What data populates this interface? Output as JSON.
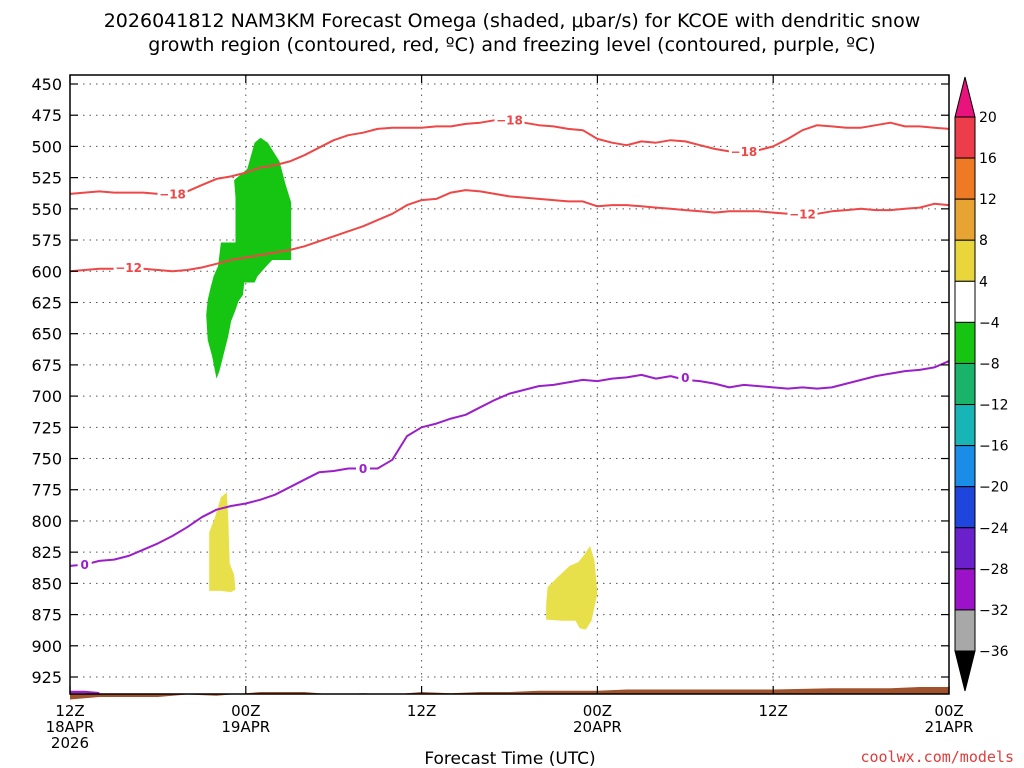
{
  "chart_data": {
    "type": "time-height cross section",
    "title_line1": "2026041812 NAM3KM Forecast Omega (shaded, μbar/s) for KCOE with dendritic snow",
    "title_line2": "growth region (contoured, red, ºC) and freezing level (contoured, purple, ºC)",
    "xlabel": "Forecast Time (UTC)",
    "credit": "coolwx.com/models",
    "x_range_hours": [
      0,
      60
    ],
    "y_range_mb": [
      440,
      945
    ],
    "y_ticks": [
      450,
      475,
      500,
      525,
      550,
      575,
      600,
      625,
      650,
      675,
      700,
      725,
      750,
      775,
      800,
      825,
      850,
      875,
      900,
      925
    ],
    "x_ticks": [
      {
        "hour": 0,
        "label1": "12Z",
        "label2": "18APR",
        "label3": "2026"
      },
      {
        "hour": 12,
        "label1": "00Z",
        "label2": "19APR",
        "label3": ""
      },
      {
        "hour": 24,
        "label1": "12Z",
        "label2": "",
        "label3": ""
      },
      {
        "hour": 36,
        "label1": "00Z",
        "label2": "20APR",
        "label3": ""
      },
      {
        "hour": 48,
        "label1": "12Z",
        "label2": "",
        "label3": ""
      },
      {
        "hour": 60,
        "label1": "00Z",
        "label2": "21APR",
        "label3": ""
      }
    ],
    "colorbar": {
      "labels": [
        "20",
        "16",
        "12",
        "8",
        "4",
        "−4",
        "−8",
        "−12",
        "−16",
        "−20",
        "−24",
        "−28",
        "−32",
        "−36"
      ],
      "colors": [
        "#ed3d4a",
        "#ef7a25",
        "#e7a433",
        "#e9d63a",
        "#ffffff",
        "#16c412",
        "#19b36a",
        "#17b5b5",
        "#1a8ee6",
        "#1f46dc",
        "#6a21cc",
        "#9c12c9",
        "#a8a8a8"
      ],
      "top_arrow_color": "#e8137d",
      "bottom_arrow_color": "#000000"
    },
    "contours": [
      {
        "name": "minus-18-isotherm",
        "color": "#ee4747",
        "points": [
          [
            0,
            538
          ],
          [
            1,
            537
          ],
          [
            2,
            536
          ],
          [
            3,
            537
          ],
          [
            4,
            537
          ],
          [
            5,
            537
          ],
          [
            6,
            538
          ],
          [
            7,
            538
          ],
          [
            8,
            536
          ],
          [
            9,
            531
          ],
          [
            10,
            526
          ],
          [
            11,
            524
          ],
          [
            12,
            521
          ],
          [
            13,
            517
          ],
          [
            14,
            515
          ],
          [
            15,
            512
          ],
          [
            16,
            507
          ],
          [
            17,
            501
          ],
          [
            18,
            495
          ],
          [
            19,
            491
          ],
          [
            20,
            489
          ],
          [
            21,
            486
          ],
          [
            22,
            485
          ],
          [
            23,
            485
          ],
          [
            24,
            485
          ],
          [
            25,
            484
          ],
          [
            26,
            484
          ],
          [
            27,
            482
          ],
          [
            28,
            481
          ],
          [
            29,
            479
          ],
          [
            30,
            480
          ],
          [
            31,
            481
          ],
          [
            32,
            483
          ],
          [
            33,
            484
          ],
          [
            34,
            486
          ],
          [
            35,
            487
          ],
          [
            36,
            494
          ],
          [
            37,
            497
          ],
          [
            38,
            499
          ],
          [
            39,
            496
          ],
          [
            40,
            497
          ],
          [
            41,
            495
          ],
          [
            42,
            496
          ],
          [
            43,
            499
          ],
          [
            44,
            502
          ],
          [
            45,
            504
          ],
          [
            46,
            503
          ],
          [
            47,
            503
          ],
          [
            48,
            500
          ],
          [
            49,
            494
          ],
          [
            50,
            487
          ],
          [
            51,
            483
          ],
          [
            52,
            484
          ],
          [
            53,
            485
          ],
          [
            54,
            485
          ],
          [
            55,
            483
          ],
          [
            56,
            481
          ],
          [
            57,
            484
          ],
          [
            58,
            484
          ],
          [
            59,
            485
          ],
          [
            60,
            486
          ]
        ],
        "labels": [
          {
            "text": "−18",
            "hour": 7,
            "mb": 538
          },
          {
            "text": "−18",
            "hour": 30,
            "mb": 479
          },
          {
            "text": "−18",
            "hour": 46,
            "mb": 504
          }
        ]
      },
      {
        "name": "minus-12-isotherm",
        "color": "#ee4747",
        "points": [
          [
            0,
            600
          ],
          [
            1,
            599
          ],
          [
            2,
            598
          ],
          [
            3,
            598
          ],
          [
            4,
            597
          ],
          [
            5,
            598
          ],
          [
            6,
            599
          ],
          [
            7,
            600
          ],
          [
            8,
            599
          ],
          [
            9,
            597
          ],
          [
            10,
            594
          ],
          [
            11,
            591
          ],
          [
            12,
            589
          ],
          [
            13,
            587
          ],
          [
            14,
            585
          ],
          [
            15,
            583
          ],
          [
            16,
            580
          ],
          [
            17,
            576
          ],
          [
            18,
            572
          ],
          [
            19,
            568
          ],
          [
            20,
            564
          ],
          [
            21,
            559
          ],
          [
            22,
            554
          ],
          [
            23,
            547
          ],
          [
            24,
            543
          ],
          [
            25,
            542
          ],
          [
            26,
            537
          ],
          [
            27,
            535
          ],
          [
            28,
            536
          ],
          [
            29,
            538
          ],
          [
            30,
            540
          ],
          [
            31,
            541
          ],
          [
            32,
            542
          ],
          [
            33,
            543
          ],
          [
            34,
            544
          ],
          [
            35,
            544
          ],
          [
            36,
            548
          ],
          [
            37,
            547
          ],
          [
            38,
            547
          ],
          [
            39,
            548
          ],
          [
            40,
            549
          ],
          [
            41,
            550
          ],
          [
            42,
            551
          ],
          [
            43,
            552
          ],
          [
            44,
            553
          ],
          [
            45,
            552
          ],
          [
            46,
            552
          ],
          [
            47,
            552
          ],
          [
            48,
            553
          ],
          [
            49,
            554
          ],
          [
            50,
            554
          ],
          [
            51,
            554
          ],
          [
            52,
            552
          ],
          [
            53,
            551
          ],
          [
            54,
            550
          ],
          [
            55,
            551
          ],
          [
            56,
            551
          ],
          [
            57,
            550
          ],
          [
            58,
            549
          ],
          [
            59,
            546
          ],
          [
            60,
            547
          ]
        ],
        "labels": [
          {
            "text": "−12",
            "hour": 4,
            "mb": 597
          },
          {
            "text": "−12",
            "hour": 50,
            "mb": 554
          }
        ]
      },
      {
        "name": "freezing-level",
        "color": "#9b1fc8",
        "points": [
          [
            0,
            836
          ],
          [
            1,
            835
          ],
          [
            2,
            832
          ],
          [
            3,
            831
          ],
          [
            4,
            828
          ],
          [
            5,
            823
          ],
          [
            6,
            818
          ],
          [
            7,
            812
          ],
          [
            8,
            805
          ],
          [
            9,
            797
          ],
          [
            10,
            791
          ],
          [
            11,
            788
          ],
          [
            12,
            786
          ],
          [
            13,
            783
          ],
          [
            14,
            779
          ],
          [
            15,
            773
          ],
          [
            16,
            767
          ],
          [
            17,
            761
          ],
          [
            18,
            760
          ],
          [
            19,
            758
          ],
          [
            20,
            758
          ],
          [
            21,
            758
          ],
          [
            22,
            751
          ],
          [
            23,
            732
          ],
          [
            24,
            725
          ],
          [
            25,
            722
          ],
          [
            26,
            718
          ],
          [
            27,
            715
          ],
          [
            28,
            709
          ],
          [
            29,
            703
          ],
          [
            30,
            698
          ],
          [
            31,
            695
          ],
          [
            32,
            692
          ],
          [
            33,
            691
          ],
          [
            34,
            689
          ],
          [
            35,
            687
          ],
          [
            36,
            688
          ],
          [
            37,
            686
          ],
          [
            38,
            685
          ],
          [
            39,
            683
          ],
          [
            40,
            686
          ],
          [
            41,
            684
          ],
          [
            42,
            687
          ],
          [
            43,
            688
          ],
          [
            44,
            690
          ],
          [
            45,
            693
          ],
          [
            46,
            691
          ],
          [
            47,
            692
          ],
          [
            48,
            693
          ],
          [
            49,
            694
          ],
          [
            50,
            693
          ],
          [
            51,
            694
          ],
          [
            52,
            693
          ],
          [
            53,
            690
          ],
          [
            54,
            687
          ],
          [
            55,
            684
          ],
          [
            56,
            682
          ],
          [
            57,
            680
          ],
          [
            58,
            679
          ],
          [
            59,
            677
          ],
          [
            60,
            672
          ]
        ],
        "labels": [
          {
            "text": "0",
            "hour": 1,
            "mb": 835
          },
          {
            "text": "0",
            "hour": 20,
            "mb": 758
          },
          {
            "text": "0",
            "hour": 42,
            "mb": 685
          }
        ]
      }
    ],
    "shaded_regions": [
      {
        "name": "omega-green-region",
        "value_range": "−8 to −4",
        "color": "#16c412",
        "points": [
          [
            12.1,
            518
          ],
          [
            12.6,
            497
          ],
          [
            13,
            493
          ],
          [
            13.5,
            497
          ],
          [
            14.3,
            512
          ],
          [
            14.7,
            530
          ],
          [
            15.1,
            545
          ],
          [
            15.1,
            591
          ],
          [
            13.8,
            591
          ],
          [
            13.4,
            596
          ],
          [
            12.8,
            604
          ],
          [
            12.6,
            609
          ],
          [
            11.9,
            609
          ],
          [
            11.8,
            619
          ],
          [
            11.5,
            624
          ],
          [
            11.3,
            631
          ],
          [
            11,
            640
          ],
          [
            10.8,
            652
          ],
          [
            10.5,
            666
          ],
          [
            10.2,
            680
          ],
          [
            10,
            686
          ],
          [
            9.7,
            668
          ],
          [
            9.4,
            655
          ],
          [
            9.3,
            635
          ],
          [
            9.4,
            623
          ],
          [
            9.6,
            613
          ],
          [
            9.8,
            604
          ],
          [
            10.1,
            596
          ],
          [
            10.2,
            587
          ],
          [
            10.3,
            577
          ],
          [
            11.3,
            577
          ],
          [
            11.3,
            541
          ],
          [
            11.2,
            527
          ]
        ]
      },
      {
        "name": "omega-yellow-region-1",
        "value_range": "4 to 8",
        "color": "#e8e04a",
        "points": [
          [
            10.3,
            781
          ],
          [
            10.7,
            777
          ],
          [
            10.8,
            797
          ],
          [
            10.9,
            834
          ],
          [
            11.2,
            843
          ],
          [
            11.3,
            855
          ],
          [
            11,
            857
          ],
          [
            10.3,
            856
          ],
          [
            9.5,
            856
          ],
          [
            9.5,
            831
          ],
          [
            9.5,
            809
          ],
          [
            9.9,
            797
          ]
        ]
      },
      {
        "name": "omega-yellow-region-2",
        "value_range": "4 to 8",
        "color": "#e8e04a",
        "points": [
          [
            34.1,
            836
          ],
          [
            34.7,
            833
          ],
          [
            35.1,
            827
          ],
          [
            35.5,
            820
          ],
          [
            35.8,
            832
          ],
          [
            36,
            858
          ],
          [
            35.6,
            880
          ],
          [
            35.2,
            887
          ],
          [
            34.8,
            886
          ],
          [
            34.5,
            880
          ],
          [
            33.6,
            880
          ],
          [
            32.5,
            879
          ],
          [
            32.5,
            867
          ],
          [
            32.6,
            853
          ],
          [
            33.2,
            846
          ]
        ]
      }
    ],
    "terrain": {
      "name": "terrain",
      "color": "#a0522d",
      "points": [
        [
          0,
          943
        ],
        [
          2,
          941
        ],
        [
          4,
          941
        ],
        [
          6,
          941
        ],
        [
          8,
          939
        ],
        [
          10,
          940
        ],
        [
          12,
          938
        ],
        [
          13,
          937
        ],
        [
          14,
          937
        ],
        [
          16,
          937
        ],
        [
          18,
          939
        ],
        [
          20,
          938
        ],
        [
          22,
          939
        ],
        [
          24,
          937
        ],
        [
          26,
          938
        ],
        [
          28,
          937
        ],
        [
          30,
          937
        ],
        [
          32,
          936
        ],
        [
          34,
          936
        ],
        [
          36,
          936
        ],
        [
          38,
          935
        ],
        [
          40,
          935
        ],
        [
          44,
          935
        ],
        [
          48,
          935
        ],
        [
          52,
          934
        ],
        [
          56,
          934
        ],
        [
          58,
          933
        ],
        [
          60,
          933
        ]
      ]
    },
    "surface_trace": {
      "color": "#9b1fc8",
      "points": [
        [
          0,
          937
        ],
        [
          1,
          937
        ],
        [
          2,
          938
        ]
      ]
    }
  }
}
